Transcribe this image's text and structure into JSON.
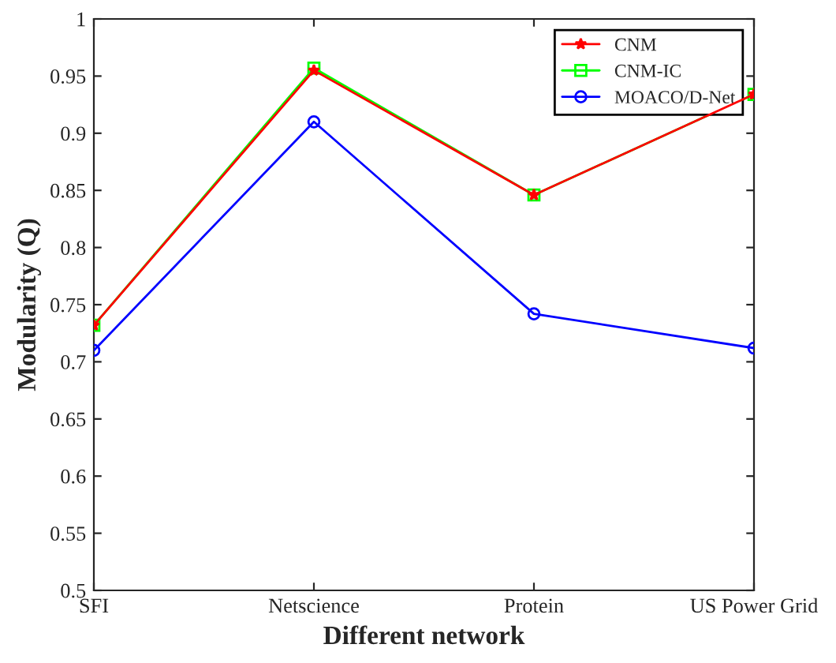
{
  "chart_data": {
    "type": "line",
    "xlabel": "Different network",
    "ylabel": "Modularity (Q)",
    "categories": [
      "SFI",
      "Netscience",
      "Protein",
      "US Power Grid"
    ],
    "series": [
      {
        "name": "CNM",
        "color": "#ff0000",
        "marker": "star",
        "values": [
          0.732,
          0.955,
          0.846,
          0.934
        ]
      },
      {
        "name": "CNM-IC",
        "color": "#00ff00",
        "marker": "square",
        "values": [
          0.732,
          0.957,
          0.846,
          0.934
        ]
      },
      {
        "name": "MOACO/D-Net",
        "color": "#0000ff",
        "marker": "circle",
        "values": [
          0.71,
          0.91,
          0.742,
          0.712
        ]
      }
    ],
    "ylim": [
      0.5,
      1
    ],
    "yticks": [
      0.5,
      0.55,
      0.6,
      0.65,
      0.7,
      0.75,
      0.8,
      0.85,
      0.9,
      0.95,
      1
    ],
    "legend": "top right",
    "grid": false
  }
}
